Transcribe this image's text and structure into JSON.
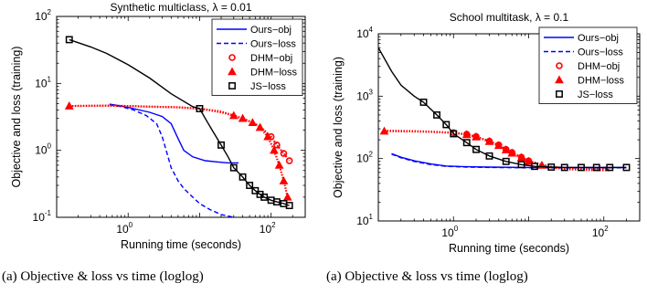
{
  "chart_data": [
    {
      "type": "line",
      "title": "Synthetic multiclass, λ = 0.01",
      "xlabel": "Running time (seconds)",
      "ylabel": "Objective and loss (training)",
      "caption": "(a)  Objective & loss vs time (loglog)",
      "xscale": "log",
      "yscale": "log",
      "xlim": [
        0.1,
        300
      ],
      "ylim": [
        0.1,
        100
      ],
      "xticks": [
        {
          "base": "10",
          "exp": "0"
        },
        {
          "base": "10",
          "exp": "2"
        }
      ],
      "yticks": [
        {
          "base": "10",
          "exp": "-1"
        },
        {
          "base": "10",
          "exp": "0"
        },
        {
          "base": "10",
          "exp": "1"
        },
        {
          "base": "10",
          "exp": "2"
        }
      ],
      "legend_position": "top-right",
      "series": [
        {
          "name": "Ours−obj",
          "style": "solid",
          "color": "#0000ff",
          "marker": "none",
          "x": [
            0.55,
            0.8,
            1.2,
            2,
            3,
            4,
            5,
            6,
            8,
            12,
            18,
            25,
            35
          ],
          "y": [
            4.9,
            4.6,
            4.2,
            3.7,
            3.2,
            2.5,
            1.5,
            1.0,
            0.8,
            0.7,
            0.67,
            0.65,
            0.65
          ]
        },
        {
          "name": "Ours−loss",
          "style": "dashed",
          "color": "#0000ff",
          "marker": "none",
          "x": [
            0.55,
            0.8,
            1.2,
            1.8,
            2.5,
            3,
            3.5,
            4,
            5,
            6,
            8,
            10,
            14,
            20,
            30
          ],
          "y": [
            4.8,
            4.5,
            4.0,
            3.3,
            2.5,
            1.6,
            0.9,
            0.55,
            0.35,
            0.27,
            0.2,
            0.16,
            0.13,
            0.11,
            0.1
          ]
        },
        {
          "name": "DHM−obj",
          "style": "dotted",
          "color": "#ff0000",
          "marker": "circle",
          "x": [
            0.15,
            0.5,
            1,
            2,
            5,
            10,
            20,
            30,
            40,
            60,
            80,
            100,
            120,
            150,
            180
          ],
          "y": [
            4.6,
            4.65,
            4.6,
            4.5,
            4.4,
            4.2,
            3.7,
            3.3,
            3.0,
            2.5,
            2.0,
            1.6,
            1.2,
            0.9,
            0.7
          ],
          "marker_x": [
            100,
            120,
            150,
            180
          ],
          "marker_y": [
            1.6,
            1.2,
            0.9,
            0.7
          ]
        },
        {
          "name": "DHM−loss",
          "style": "dotted",
          "color": "#ff0000",
          "marker": "triangle",
          "x": [
            0.15,
            0.5,
            1,
            2,
            5,
            10,
            20,
            30,
            40,
            55,
            70,
            90,
            110,
            130,
            150,
            170
          ],
          "y": [
            4.6,
            4.65,
            4.6,
            4.5,
            4.4,
            4.2,
            3.8,
            3.3,
            3.0,
            2.6,
            2.2,
            1.6,
            1.0,
            0.6,
            0.35,
            0.2
          ],
          "marker_x": [
            0.15,
            30,
            40,
            55,
            70,
            90,
            110,
            130,
            150,
            170
          ],
          "marker_y": [
            4.6,
            3.3,
            3.0,
            2.6,
            2.2,
            1.6,
            1.0,
            0.6,
            0.35,
            0.2
          ]
        },
        {
          "name": "JS−loss",
          "style": "solid",
          "color": "#000000",
          "marker": "square",
          "x": [
            0.15,
            0.3,
            0.5,
            1,
            2,
            4,
            8,
            10,
            12,
            15,
            20,
            25,
            30,
            40,
            50,
            60,
            70,
            80,
            100,
            120,
            150,
            180
          ],
          "y": [
            45,
            35,
            28,
            19,
            12,
            7,
            4.5,
            4.2,
            3.0,
            2.0,
            1.2,
            0.8,
            0.55,
            0.4,
            0.3,
            0.25,
            0.22,
            0.2,
            0.18,
            0.17,
            0.16,
            0.15
          ],
          "marker_x": [
            0.15,
            10,
            20,
            30,
            40,
            50,
            60,
            70,
            80,
            100,
            120,
            150,
            180
          ],
          "marker_y": [
            45,
            4.2,
            1.2,
            0.55,
            0.4,
            0.3,
            0.25,
            0.22,
            0.2,
            0.18,
            0.17,
            0.16,
            0.15
          ]
        }
      ]
    },
    {
      "type": "line",
      "title": "School multitask, λ = 0.1",
      "xlabel": "Running time (seconds)",
      "ylabel": "Objective and loss (training)",
      "caption": "(a)  Objective & loss vs time (loglog)",
      "xscale": "log",
      "yscale": "log",
      "xlim": [
        0.1,
        300
      ],
      "ylim": [
        10,
        10000
      ],
      "xticks": [
        {
          "base": "10",
          "exp": "0"
        },
        {
          "base": "10",
          "exp": "2"
        }
      ],
      "yticks": [
        {
          "base": "10",
          "exp": "1"
        },
        {
          "base": "10",
          "exp": "2"
        },
        {
          "base": "10",
          "exp": "3"
        },
        {
          "base": "10",
          "exp": "4"
        }
      ],
      "legend_position": "top-right",
      "series": [
        {
          "name": "Ours−obj",
          "style": "solid",
          "color": "#0000ff",
          "marker": "none",
          "x": [
            0.15,
            0.2,
            0.3,
            0.5,
            0.8,
            1.5,
            3,
            10,
            30,
            100,
            200
          ],
          "y": [
            120,
            105,
            92,
            82,
            76,
            74,
            73,
            72,
            72,
            72,
            72
          ]
        },
        {
          "name": "Ours−loss",
          "style": "dashed",
          "color": "#0000ff",
          "marker": "none",
          "x": [
            0.15,
            0.2,
            0.3,
            0.5,
            0.8,
            1.5,
            3,
            10,
            30,
            100,
            200
          ],
          "y": [
            118,
            103,
            90,
            80,
            75,
            73,
            72,
            71,
            71,
            71,
            71
          ]
        },
        {
          "name": "DHM−obj",
          "style": "dotted",
          "color": "#ff0000",
          "marker": "circle",
          "x": [
            0.12,
            0.3,
            0.5,
            1,
            1.5,
            2,
            3,
            4,
            5,
            6,
            8,
            10,
            15,
            20,
            30,
            50,
            80,
            120
          ],
          "y": [
            280,
            275,
            270,
            260,
            245,
            225,
            190,
            165,
            140,
            125,
            105,
            92,
            80,
            74,
            70,
            68,
            67,
            67
          ],
          "marker_x": [
            1,
            1.5,
            2,
            3,
            4,
            5,
            6,
            8,
            10
          ],
          "marker_y": [
            260,
            245,
            225,
            190,
            165,
            140,
            125,
            105,
            92
          ]
        },
        {
          "name": "DHM−loss",
          "style": "dotted",
          "color": "#ff0000",
          "marker": "triangle",
          "x": [
            0.12,
            0.3,
            0.5,
            1,
            1.5,
            2,
            3,
            4,
            5,
            6,
            8,
            10,
            15,
            20,
            30,
            50,
            80,
            120
          ],
          "y": [
            275,
            272,
            268,
            258,
            242,
            222,
            188,
            162,
            138,
            122,
            103,
            90,
            78,
            72,
            68,
            66,
            65,
            65
          ],
          "marker_x": [
            0.12,
            1.5,
            2,
            3,
            4,
            5,
            6,
            8,
            10,
            15
          ],
          "marker_y": [
            275,
            242,
            222,
            188,
            162,
            138,
            122,
            103,
            90,
            78
          ]
        },
        {
          "name": "JS−loss",
          "style": "solid",
          "color": "#000000",
          "marker": "square",
          "x": [
            0.1,
            0.15,
            0.2,
            0.3,
            0.4,
            0.6,
            0.8,
            1,
            1.5,
            2,
            3,
            5,
            8,
            12,
            20,
            30,
            50,
            80,
            120,
            200
          ],
          "y": [
            6000,
            2500,
            1500,
            1000,
            800,
            500,
            350,
            250,
            180,
            140,
            110,
            90,
            80,
            75,
            73,
            72,
            72,
            72,
            72,
            72
          ],
          "marker_x": [
            0.4,
            0.6,
            0.8,
            1,
            1.5,
            2,
            3,
            5,
            8,
            12,
            20,
            30,
            50,
            80,
            120,
            200
          ],
          "marker_y": [
            800,
            500,
            350,
            250,
            180,
            140,
            110,
            90,
            80,
            75,
            73,
            72,
            72,
            72,
            72,
            72
          ]
        }
      ]
    }
  ]
}
